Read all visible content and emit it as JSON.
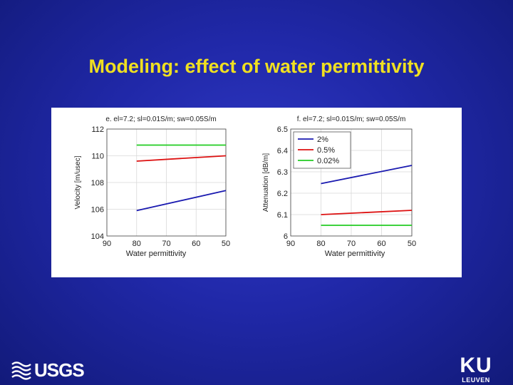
{
  "slide": {
    "title": "Modeling: effect of water permittivity"
  },
  "logos": {
    "usgs": "USGS",
    "ku": "KU",
    "ku_sub": "LEUVEN"
  },
  "colors": {
    "background": "#2028a8",
    "title": "#f0e020",
    "series_2pct": "#1a1ab0",
    "series_05pct": "#dd1111",
    "series_002pct": "#22cc22"
  },
  "chart_data": [
    {
      "type": "line",
      "title": "e. el=7.2; sl=0.01S/m; sw=0.05S/m",
      "xlabel": "Water permittivity",
      "ylabel": "Velocity [m/usec]",
      "xlim": [
        90,
        50
      ],
      "ylim": [
        104,
        112
      ],
      "x_reversed": true,
      "xticks": [
        "90",
        "80",
        "70",
        "60",
        "50"
      ],
      "yticks": [
        "104",
        "106",
        "108",
        "110",
        "112"
      ],
      "grid": true,
      "series": [
        {
          "x": [
            80,
            50
          ],
          "values": [
            110.8,
            110.8
          ],
          "color": "#22cc22"
        },
        {
          "x": [
            80,
            50
          ],
          "values": [
            109.6,
            110.0
          ],
          "color": "#dd1111"
        },
        {
          "x": [
            80,
            50
          ],
          "values": [
            105.9,
            107.4
          ],
          "color": "#1a1ab0"
        }
      ]
    },
    {
      "type": "line",
      "title": "f. el=7.2; sl=0.01S/m; sw=0.05S/m",
      "xlabel": "Water permittivity",
      "ylabel": "Attenuation [dB/m]",
      "xlim": [
        90,
        50
      ],
      "ylim": [
        6,
        6.5
      ],
      "x_reversed": true,
      "xticks": [
        "90",
        "80",
        "70",
        "60",
        "50"
      ],
      "yticks": [
        "6",
        "6.1",
        "6.2",
        "6.3",
        "6.4",
        "6.5"
      ],
      "grid": true,
      "legend": "top-left",
      "series": [
        {
          "name": "2%",
          "x": [
            80,
            50
          ],
          "values": [
            6.245,
            6.33
          ],
          "color": "#1a1ab0"
        },
        {
          "name": "0.5%",
          "x": [
            80,
            50
          ],
          "values": [
            6.1,
            6.12
          ],
          "color": "#dd1111"
        },
        {
          "name": "0.02%",
          "x": [
            80,
            50
          ],
          "values": [
            6.05,
            6.05
          ],
          "color": "#22cc22"
        }
      ]
    }
  ]
}
